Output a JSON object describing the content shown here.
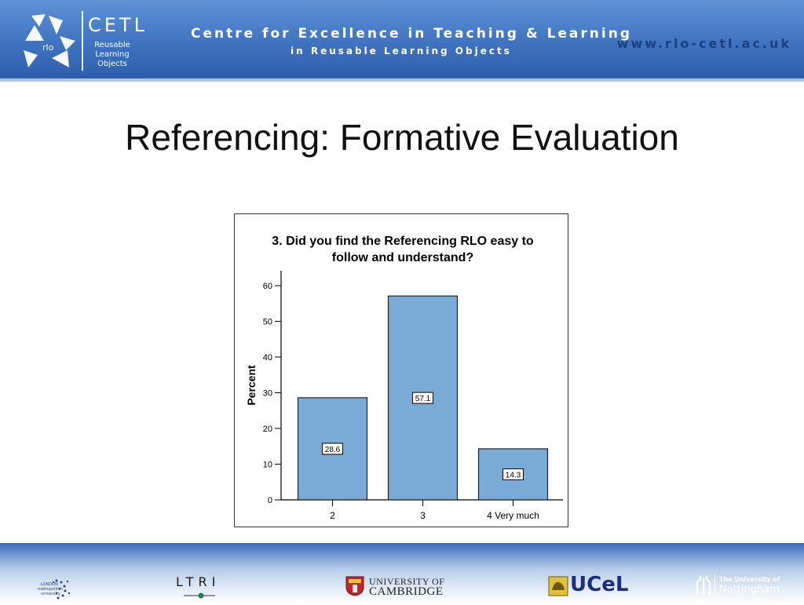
{
  "header": {
    "logo": {
      "icon_name": "recycle-icon",
      "icon_text": "rlo",
      "name": "CETL",
      "subtitle_lines": [
        "Reusable",
        "Learning",
        "Objects"
      ]
    },
    "title": "Centre for Excellence in Teaching & Learning",
    "subtitle": "in Reusable Learning Objects",
    "url": "www.rlo-cetl.ac.uk"
  },
  "slide": {
    "title": "Referencing: Formative Evaluation"
  },
  "chart_data": {
    "type": "bar",
    "title": "3. Did you find the Referencing RLO easy to follow and understand?",
    "title_lines": [
      "3. Did you find the Referencing RLO easy to",
      "follow and understand?"
    ],
    "xlabel": "",
    "ylabel": "Percent",
    "categories": [
      "2",
      "3",
      "4 Very much"
    ],
    "values": [
      28.6,
      57.1,
      14.3
    ],
    "data_labels": [
      "28.6",
      "57.1",
      "14.3"
    ],
    "ylim": [
      0,
      60
    ],
    "yticks": [
      0,
      10,
      20,
      30,
      40,
      50,
      60
    ],
    "grid": false,
    "bar_color": "#7aaad6",
    "bar_edge_color": "#222222"
  },
  "footer": {
    "logos": [
      {
        "name": "london-metropolitan-university-logo",
        "lines": [
          "LONDON",
          "metropolitan",
          "university"
        ]
      },
      {
        "name": "ltri-logo",
        "text": "LTRI"
      },
      {
        "name": "university-of-cambridge-logo",
        "lines": [
          "UNIVERSITY OF",
          "CAMBRIDGE"
        ]
      },
      {
        "name": "ucel-logo",
        "text": "UCeL"
      },
      {
        "name": "university-of-nottingham-logo",
        "lines": [
          "The University of",
          "Nottingham"
        ]
      }
    ]
  }
}
